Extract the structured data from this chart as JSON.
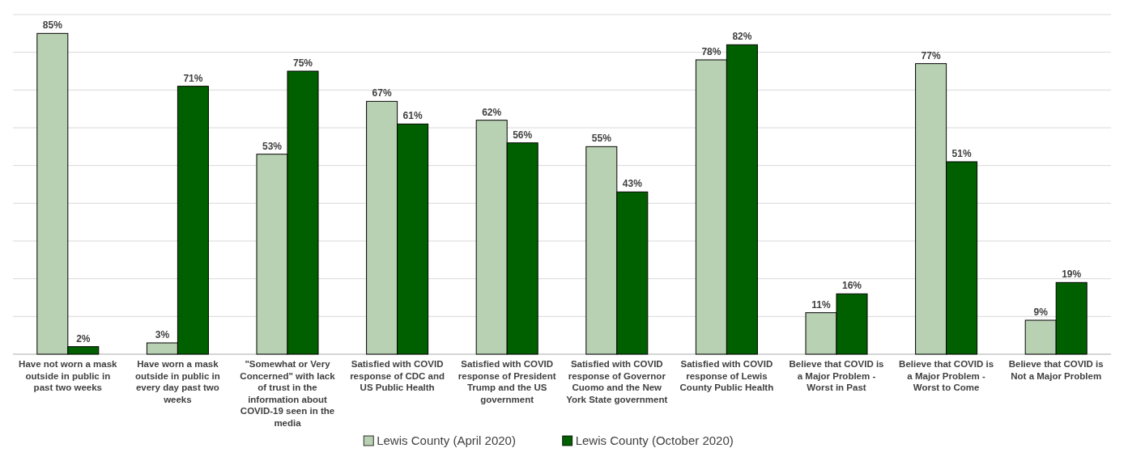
{
  "chart_data": {
    "type": "bar",
    "categories": [
      "Have not worn a mask outside in public in past two weeks",
      "Have worn a mask outside in public in every day past two weeks",
      "\"Somewhat or Very Concerned\" with lack of trust in the information about COVID-19 seen in the media",
      "Satisfied with COVID response of CDC and US Public Health",
      "Satisfied with COVID response of President Trump and the US government",
      "Satisfied with COVID response of Governor Cuomo and the New York State government",
      "Satisfied with COVID response of Lewis County Public Health",
      "Believe that COVID is a Major Problem - Worst in Past",
      "Believe that COVID is a Major Problem - Worst to Come",
      "Believe that COVID is Not a Major Problem"
    ],
    "series": [
      {
        "name": "Lewis County (April 2020)",
        "color": "#b9d1b3",
        "values": [
          85,
          3,
          53,
          67,
          62,
          55,
          78,
          11,
          77,
          9
        ],
        "value_labels": [
          "85%",
          "3%",
          "53%",
          "67%",
          "62%",
          "55%",
          "78%",
          "11%",
          "77%",
          "9%"
        ]
      },
      {
        "name": "Lewis County (October 2020)",
        "color": "#006000",
        "values": [
          2,
          71,
          75,
          61,
          56,
          43,
          82,
          16,
          51,
          19
        ],
        "value_labels": [
          "2%",
          "71%",
          "75%",
          "61%",
          "56%",
          "43%",
          "82%",
          "16%",
          "51%",
          "19%"
        ]
      }
    ],
    "ylim": [
      0,
      90
    ],
    "yticks": [
      {
        "value": 0,
        "label": null
      },
      {
        "value": 10,
        "label": null
      },
      {
        "value": 20,
        "label": null
      },
      {
        "value": 30,
        "label": null
      },
      {
        "value": 40,
        "label": null
      },
      {
        "value": 50,
        "label": null
      },
      {
        "value": 60,
        "label": null
      },
      {
        "value": 70,
        "label": null
      },
      {
        "value": 80,
        "label": null
      },
      {
        "value": 90,
        "label": null
      }
    ],
    "grid": "y",
    "legend": "bottom",
    "tick_labels": "x"
  }
}
